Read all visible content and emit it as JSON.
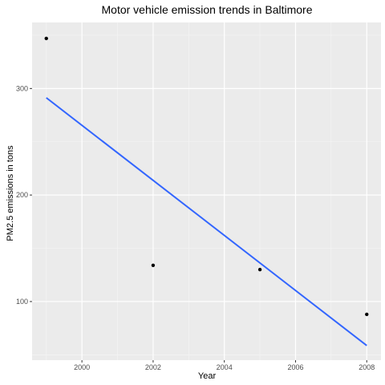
{
  "chart_data": {
    "type": "scatter",
    "title": "Motor vehicle emission trends in Baltimore",
    "xlabel": "Year",
    "ylabel": "PM2.5 emissions in tons",
    "x_ticks": [
      2000,
      2002,
      2004,
      2006,
      2008
    ],
    "y_ticks": [
      100,
      200,
      300
    ],
    "xlim": [
      1998.6,
      2008.4
    ],
    "ylim": [
      45,
      362
    ],
    "grid": true,
    "legend": "none",
    "series": [
      {
        "points": [
          {
            "x": 1999,
            "y": 347
          },
          {
            "x": 2002,
            "y": 134
          },
          {
            "x": 2005,
            "y": 130
          },
          {
            "x": 2008,
            "y": 88
          }
        ],
        "color": "#000000"
      }
    ],
    "trend_line": {
      "method": "linear",
      "x": [
        1999,
        2008
      ],
      "y": [
        291.3,
        58.7
      ],
      "color": "#3366ff"
    },
    "colors": {
      "panel": "#ebebeb",
      "grid_major": "#ffffff",
      "grid_minor": "#f5f5f5"
    }
  }
}
